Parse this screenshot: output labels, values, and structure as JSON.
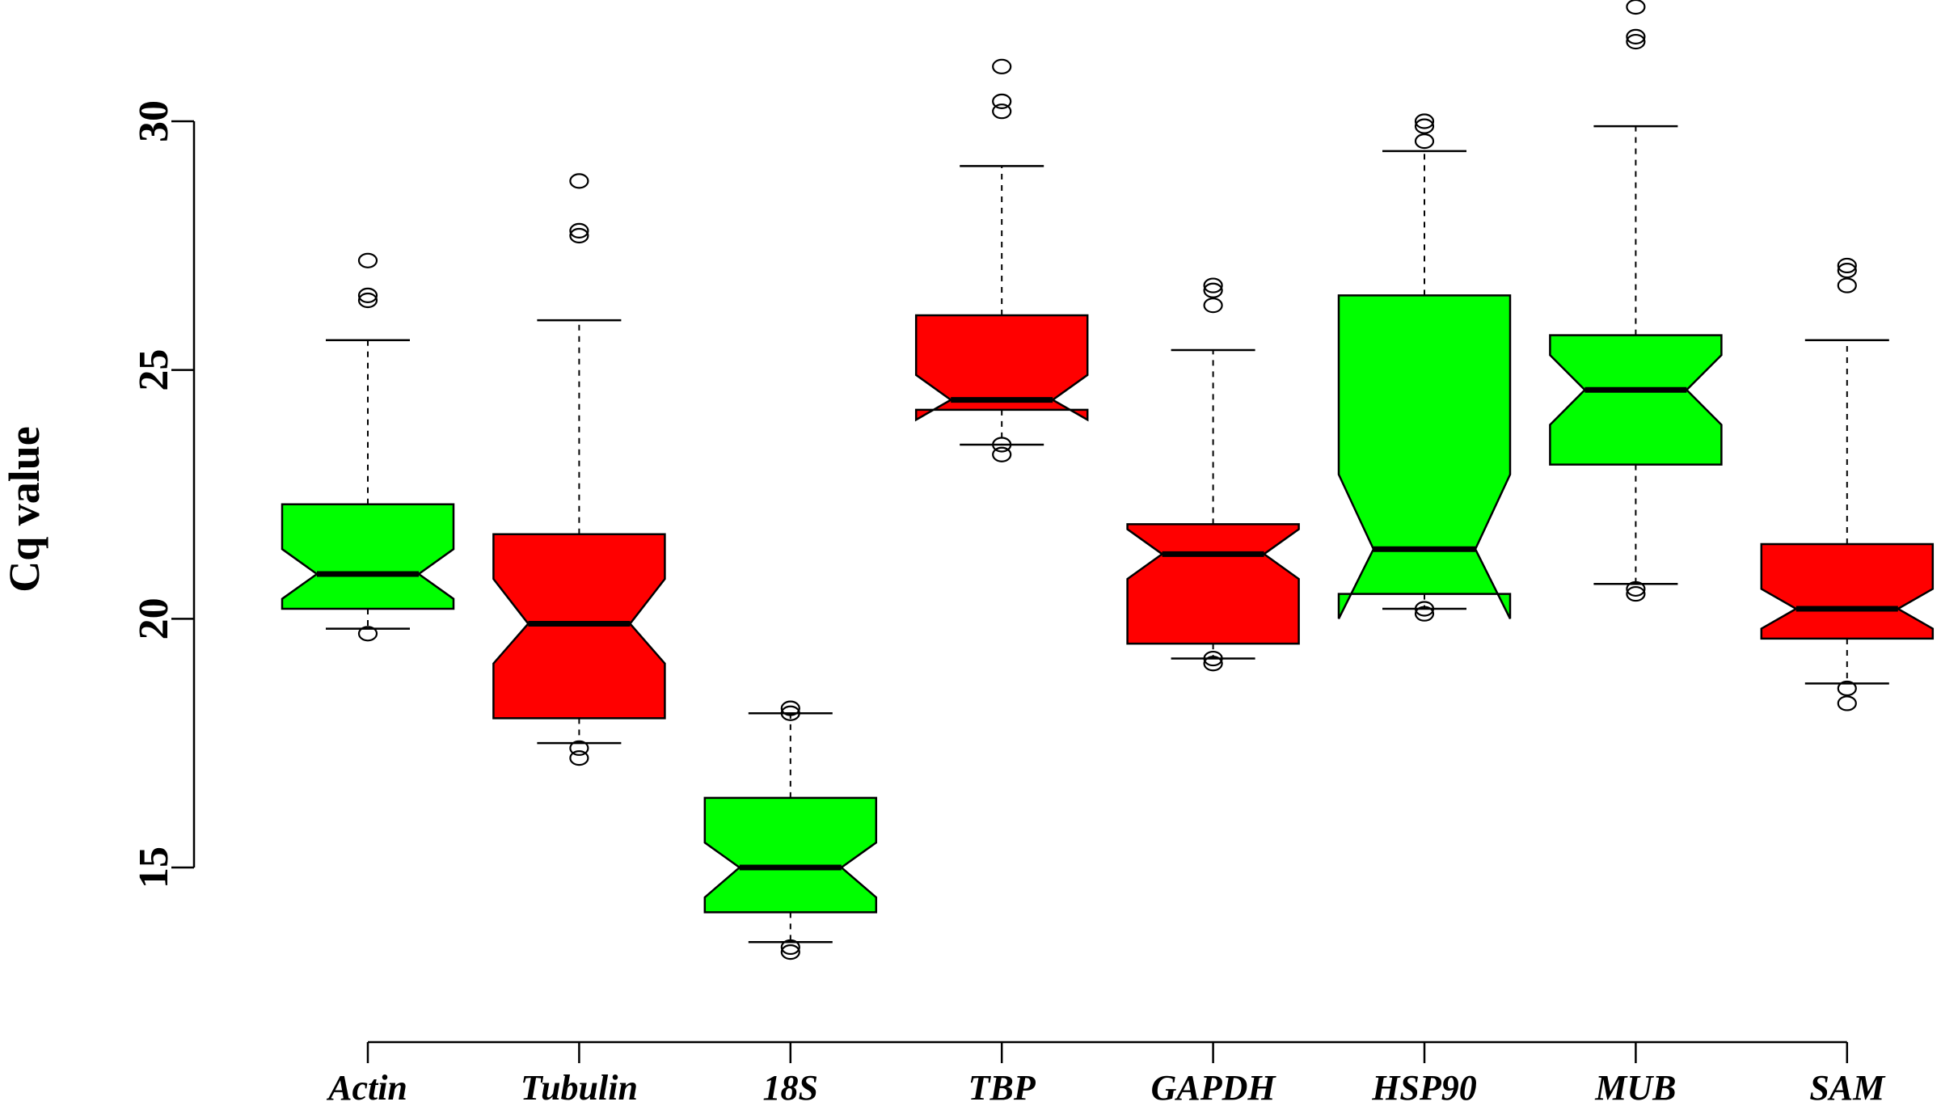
{
  "chart_data": {
    "type": "boxplot",
    "notched": true,
    "title": "",
    "xlabel": "",
    "ylabel": "Cq value",
    "ylim": [
      12.5,
      32.5
    ],
    "yticks": [
      15,
      20,
      25,
      30
    ],
    "ytick_labels": [
      "15",
      "20",
      "25",
      "30"
    ],
    "categories": [
      "Actin",
      "Tubulin",
      "18S",
      "TBP",
      "GAPDH",
      "HSP90",
      "MUB",
      "SAM"
    ],
    "colors": [
      "#00ff00",
      "#ff0000",
      "#00ff00",
      "#ff0000",
      "#ff0000",
      "#00ff00",
      "#00ff00",
      "#ff0000"
    ],
    "grid": false,
    "boxes": [
      {
        "name": "Actin",
        "whisker_low": 19.8,
        "q1": 20.2,
        "median": 20.9,
        "q3": 22.3,
        "whisker_high": 25.6,
        "notch_low": 20.4,
        "notch_high": 21.4,
        "outliers": [
          19.7,
          26.4,
          26.5,
          27.2
        ]
      },
      {
        "name": "Tubulin",
        "whisker_low": 17.5,
        "q1": 18.0,
        "median": 19.9,
        "q3": 21.7,
        "whisker_high": 26.0,
        "notch_low": 19.1,
        "notch_high": 20.8,
        "outliers": [
          17.2,
          17.4,
          27.7,
          27.8,
          28.8
        ]
      },
      {
        "name": "18S",
        "whisker_low": 13.5,
        "q1": 14.1,
        "median": 15.0,
        "q3": 16.4,
        "whisker_high": 18.1,
        "notch_low": 14.4,
        "notch_high": 15.5,
        "outliers": [
          13.3,
          13.4,
          18.1,
          18.2
        ]
      },
      {
        "name": "TBP",
        "whisker_low": 23.5,
        "q1": 24.2,
        "median": 24.4,
        "q3": 26.1,
        "whisker_high": 29.1,
        "notch_low": 24.0,
        "notch_high": 24.9,
        "outliers": [
          23.3,
          23.5,
          30.2,
          30.4,
          31.1
        ]
      },
      {
        "name": "GAPDH",
        "whisker_low": 19.2,
        "q1": 19.5,
        "median": 21.3,
        "q3": 21.9,
        "whisker_high": 25.4,
        "notch_low": 20.8,
        "notch_high": 21.8,
        "outliers": [
          19.1,
          19.2,
          26.3,
          26.6,
          26.7
        ]
      },
      {
        "name": "HSP90",
        "whisker_low": 20.2,
        "q1": 20.5,
        "median": 21.4,
        "q3": 26.5,
        "whisker_high": 29.4,
        "notch_low": 20.0,
        "notch_high": 22.9,
        "outliers": [
          20.1,
          20.2,
          29.6,
          29.9,
          30.0
        ]
      },
      {
        "name": "MUB",
        "whisker_low": 20.7,
        "q1": 23.1,
        "median": 24.6,
        "q3": 25.7,
        "whisker_high": 29.9,
        "notch_low": 23.9,
        "notch_high": 25.3,
        "outliers": [
          20.5,
          20.6,
          31.6,
          31.7,
          32.3
        ]
      },
      {
        "name": "SAM",
        "whisker_low": 18.7,
        "q1": 19.6,
        "median": 20.2,
        "q3": 21.5,
        "whisker_high": 25.6,
        "notch_low": 19.8,
        "notch_high": 20.6,
        "outliers": [
          18.3,
          18.6,
          26.7,
          27.0,
          27.1
        ]
      }
    ]
  }
}
